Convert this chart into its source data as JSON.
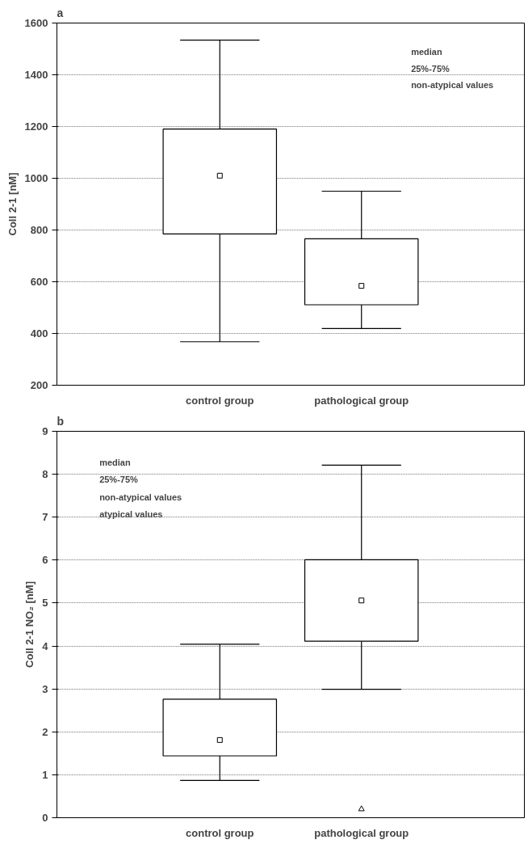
{
  "chart_data": [
    {
      "type": "box",
      "title": "a",
      "ylabel": "Coll 2-1 [nM]",
      "categories": [
        "control group",
        "pathological group"
      ],
      "boxes": [
        {
          "low": 368,
          "q1": 785,
          "median": 1010,
          "q3": 1190,
          "high": 1534
        },
        {
          "low": 419,
          "q1": 511,
          "median": 584,
          "q3": 766,
          "high": 950
        }
      ],
      "ylim": [
        200,
        1600
      ],
      "yticks": [
        200,
        400,
        600,
        800,
        1000,
        1200,
        1400,
        1600
      ],
      "grid": "y",
      "annotations": [
        "median",
        "25%-75%",
        "non-atypical values"
      ]
    },
    {
      "type": "box",
      "title": "b",
      "ylabel": "Coll 2-1 NO₂ [nM]",
      "categories": [
        "control group",
        "pathological group"
      ],
      "boxes": [
        {
          "low": 0.87,
          "q1": 1.44,
          "median": 1.81,
          "q3": 2.76,
          "high": 4.04
        },
        {
          "low": 2.99,
          "q1": 4.11,
          "median": 5.06,
          "q3": 6.01,
          "high": 8.21,
          "outliers": [
            0.2
          ]
        }
      ],
      "ylim": [
        0,
        9
      ],
      "yticks": [
        0,
        1,
        2,
        3,
        4,
        5,
        6,
        7,
        8,
        9
      ],
      "grid": "y",
      "annotations": [
        "median",
        "25%-75%",
        "non-atypical values",
        "atypical values"
      ]
    }
  ]
}
